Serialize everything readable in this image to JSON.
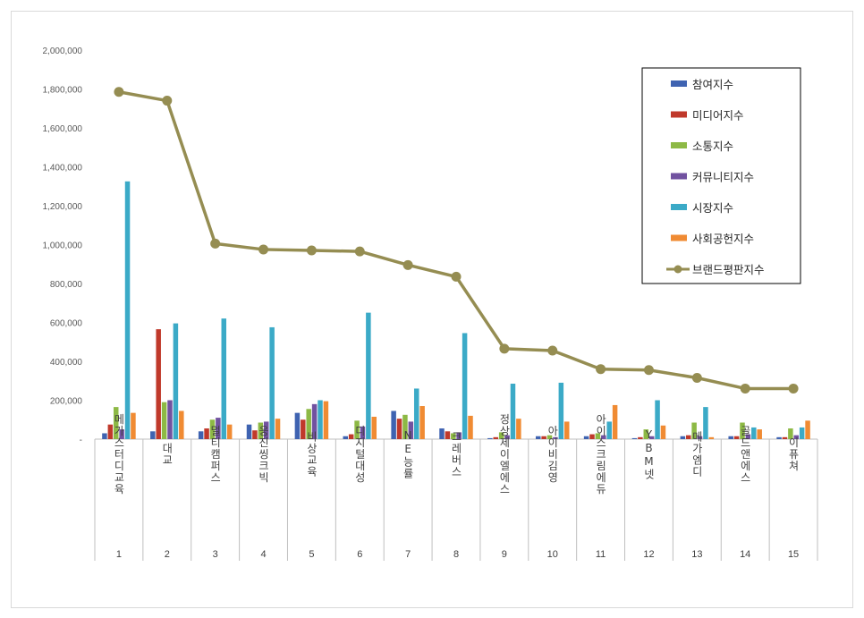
{
  "chart_data": {
    "type": "bar",
    "ylim": [
      0,
      2000000
    ],
    "yticks": [
      "-",
      "200,000",
      "400,000",
      "600,000",
      "800,000",
      "1,000,000",
      "1,200,000",
      "1,400,000",
      "1,600,000",
      "1,800,000",
      "2,000,000"
    ],
    "categories": [
      "메가스터디교육",
      "대교",
      "멀티캠퍼스",
      "웅진씽크빅",
      "비상교육",
      "디지털대성",
      "NE능률",
      "크레버스",
      "정상제이엘에스",
      "아이비김영",
      "아이스크림에듀",
      "YBM넷",
      "메가엠디",
      "골드앤에스",
      "이퓨쳐"
    ],
    "ranks": [
      "1",
      "2",
      "3",
      "4",
      "5",
      "6",
      "7",
      "8",
      "9",
      "10",
      "11",
      "12",
      "13",
      "14",
      "15"
    ],
    "series": [
      {
        "name": "참여지수",
        "color": "#3F63B1",
        "values": [
          30000,
          40000,
          40000,
          75000,
          135000,
          15000,
          145000,
          55000,
          5000,
          15000,
          15000,
          5000,
          15000,
          15000,
          10000
        ]
      },
      {
        "name": "미디어지수",
        "color": "#C0392B",
        "values": [
          75000,
          565000,
          55000,
          45000,
          100000,
          25000,
          105000,
          40000,
          10000,
          15000,
          25000,
          10000,
          20000,
          15000,
          10000
        ]
      },
      {
        "name": "소통지수",
        "color": "#8DB945",
        "values": [
          165000,
          190000,
          100000,
          85000,
          155000,
          95000,
          125000,
          30000,
          35000,
          20000,
          30000,
          50000,
          85000,
          85000,
          55000
        ]
      },
      {
        "name": "커뮤니티지수",
        "color": "#7152A0",
        "values": [
          50000,
          200000,
          110000,
          90000,
          180000,
          65000,
          90000,
          35000,
          20000,
          10000,
          20000,
          15000,
          15000,
          25000,
          20000
        ]
      },
      {
        "name": "시장지수",
        "color": "#3BAAC7",
        "values": [
          1325000,
          595000,
          620000,
          575000,
          200000,
          650000,
          260000,
          545000,
          285000,
          290000,
          90000,
          200000,
          165000,
          60000,
          60000
        ]
      },
      {
        "name": "사회공헌지수",
        "color": "#F08B33",
        "values": [
          135000,
          145000,
          75000,
          105000,
          195000,
          115000,
          170000,
          120000,
          105000,
          90000,
          175000,
          70000,
          10000,
          50000,
          95000
        ]
      }
    ],
    "line": {
      "name": "브랜드평판지수",
      "color": "#958D52",
      "values": [
        1785000,
        1740000,
        1005000,
        975000,
        970000,
        965000,
        895000,
        835000,
        465000,
        455000,
        360000,
        355000,
        315000,
        260000,
        260000
      ]
    },
    "legend_position": "top-right"
  }
}
